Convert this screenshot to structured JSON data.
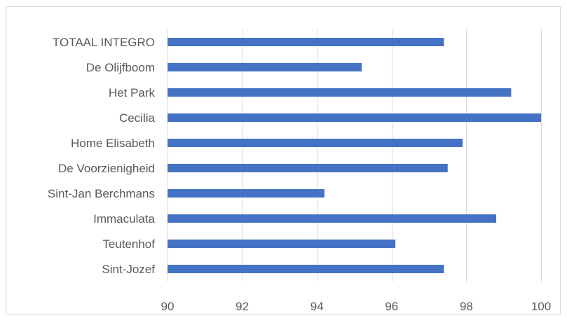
{
  "chart_data": {
    "type": "bar",
    "orientation": "horizontal",
    "title": "",
    "xlabel": "",
    "ylabel": "",
    "categories": [
      "TOTAAL INTEGRO",
      "De Olijfboom",
      "Het Park",
      "Cecilia",
      "Home Elisabeth",
      "De Voorzienigheid",
      "Sint-Jan Berchmans",
      "Immaculata",
      "Teutenhof",
      "Sint-Jozef"
    ],
    "values": [
      97.4,
      95.2,
      99.2,
      100,
      97.9,
      97.5,
      94.2,
      98.8,
      96.1,
      97.4
    ],
    "xlim": [
      90,
      100
    ],
    "xticks": [
      90,
      92,
      94,
      96,
      98,
      100
    ],
    "grid": "vertical",
    "legend": "none",
    "colors": {
      "bar": "#4472c4",
      "grid": "#d9d9d9",
      "text": "#595959",
      "border": "#d9d9d9"
    }
  }
}
